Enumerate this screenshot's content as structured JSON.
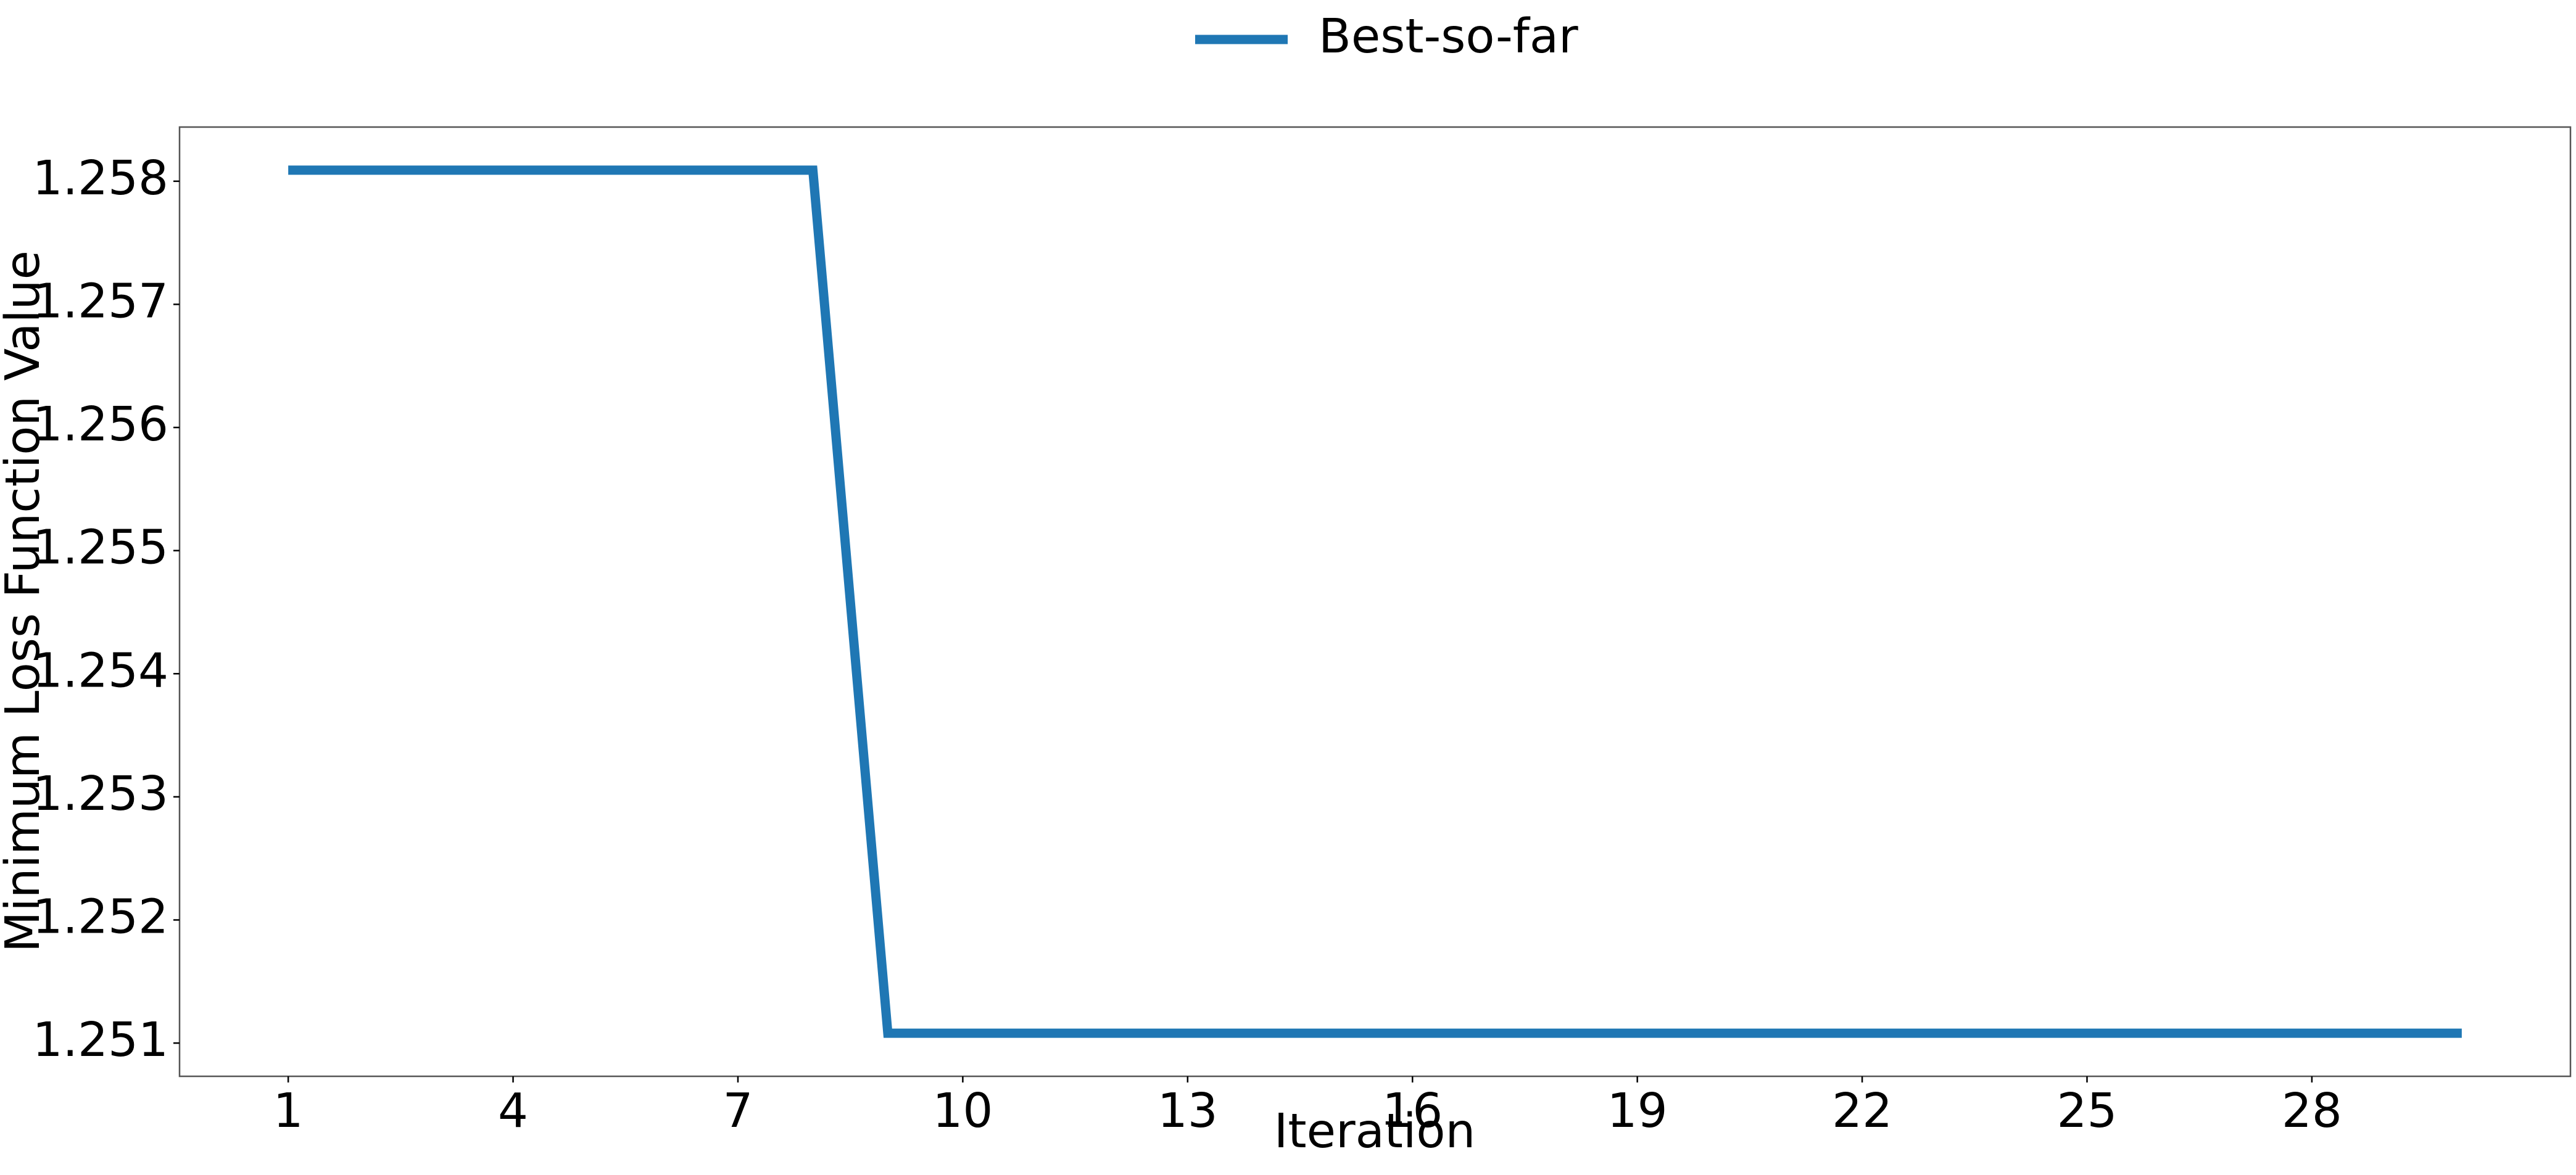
{
  "chart_data": {
    "type": "line",
    "title": "",
    "xlabel": "Iteration",
    "ylabel": "Minimum Loss Function Value",
    "x": [
      1,
      2,
      3,
      4,
      5,
      6,
      7,
      8,
      9,
      10,
      11,
      12,
      13,
      14,
      15,
      16,
      17,
      18,
      19,
      20,
      21,
      22,
      23,
      24,
      25,
      26,
      27,
      28,
      29,
      30
    ],
    "series": [
      {
        "name": "Best-so-far",
        "color": "#1f77b4",
        "values": [
          1.25809,
          1.25809,
          1.25809,
          1.25809,
          1.25809,
          1.25809,
          1.25809,
          1.25809,
          1.25108,
          1.25108,
          1.25108,
          1.25108,
          1.25108,
          1.25108,
          1.25108,
          1.25108,
          1.25108,
          1.25108,
          1.25108,
          1.25108,
          1.25108,
          1.25108,
          1.25108,
          1.25108,
          1.25108,
          1.25108,
          1.25108,
          1.25108,
          1.25108,
          1.25108
        ]
      }
    ],
    "xticks": [
      1,
      4,
      7,
      10,
      13,
      16,
      19,
      22,
      25,
      28
    ],
    "xtick_labels": [
      "1",
      "4",
      "7",
      "10",
      "13",
      "16",
      "19",
      "22",
      "25",
      "28"
    ],
    "yticks": [
      1.251,
      1.252,
      1.253,
      1.254,
      1.255,
      1.256,
      1.257,
      1.258
    ],
    "ytick_labels": [
      "1.251",
      "1.252",
      "1.253",
      "1.254",
      "1.255",
      "1.256",
      "1.257",
      "1.258"
    ],
    "xlim": [
      -0.45,
      31.45
    ],
    "ylim": [
      1.25073,
      1.25844
    ],
    "grid": false,
    "legend_position": "top-center"
  }
}
